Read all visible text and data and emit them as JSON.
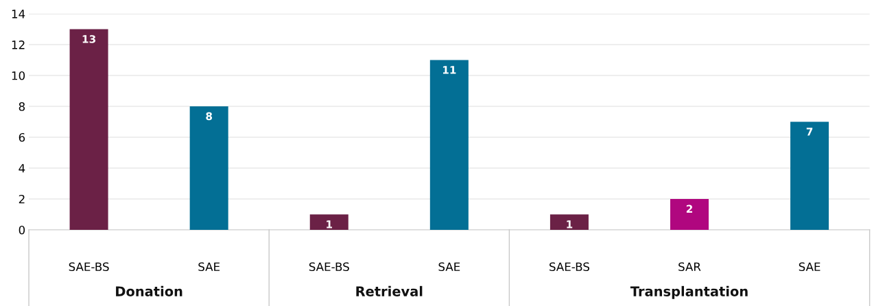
{
  "chart_data": {
    "type": "bar",
    "categories": [
      "SAE-BS",
      "SAE",
      "SAE-BS",
      "SAE",
      "SAE-BS",
      "SAR",
      "SAE"
    ],
    "values": [
      13,
      8,
      1,
      11,
      1,
      2,
      7
    ],
    "colors": [
      "#6b2146",
      "#036f95",
      "#6b2146",
      "#036f95",
      "#6b2146",
      "#b0077f",
      "#036f95"
    ],
    "data_labels": true,
    "ylim": [
      0,
      14
    ],
    "yticks": [
      0,
      2,
      4,
      6,
      8,
      10,
      12,
      14
    ],
    "grid": "y",
    "annotations": [
      "Donation",
      "Retrieval",
      "Transplantation"
    ]
  }
}
